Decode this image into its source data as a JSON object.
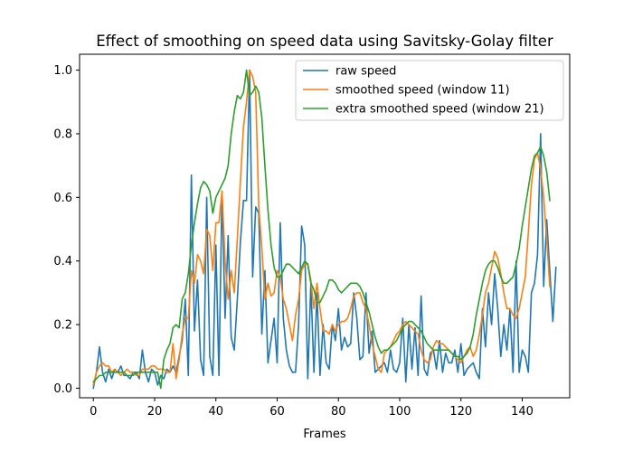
{
  "chart_data": {
    "type": "line",
    "title": "Effect of smoothing on speed data using Savitsky-Golay filter",
    "xlabel": "Frames",
    "ylabel": "",
    "xlim": [
      -4.5,
      155.5
    ],
    "ylim": [
      -0.03,
      1.05
    ],
    "xticks": [
      0,
      20,
      40,
      60,
      80,
      100,
      120,
      140
    ],
    "yticks": [
      0.0,
      0.2,
      0.4,
      0.6,
      0.8,
      1.0
    ],
    "xtick_labels": [
      "0",
      "20",
      "40",
      "60",
      "80",
      "100",
      "120",
      "140"
    ],
    "ytick_labels": [
      "0.0",
      "0.2",
      "0.4",
      "0.6",
      "0.8",
      "1.0"
    ],
    "legend_position": "top-right",
    "grid": false,
    "series": [
      {
        "name": "raw speed",
        "color": "#1f77b4",
        "values": [
          0.0,
          0.05,
          0.13,
          0.05,
          0.02,
          0.06,
          0.03,
          0.06,
          0.05,
          0.07,
          0.04,
          0.04,
          0.03,
          0.05,
          0.05,
          0.03,
          0.12,
          0.05,
          0.02,
          0.06,
          0.05,
          0.01,
          0.04,
          0.03,
          0.06,
          0.05,
          0.07,
          0.05,
          0.1,
          0.15,
          0.28,
          0.04,
          0.67,
          0.18,
          0.34,
          0.09,
          0.04,
          0.6,
          0.1,
          0.04,
          0.45,
          0.04,
          0.62,
          0.22,
          0.48,
          0.16,
          0.12,
          0.28,
          0.46,
          0.59,
          0.59,
          1.0,
          0.35,
          0.57,
          0.55,
          0.17,
          0.37,
          0.08,
          0.15,
          0.22,
          0.08,
          0.52,
          0.22,
          0.12,
          0.07,
          0.05,
          0.05,
          0.2,
          0.51,
          0.45,
          0.03,
          0.33,
          0.05,
          0.3,
          0.04,
          0.2,
          0.08,
          0.06,
          0.2,
          0.15,
          0.25,
          0.12,
          0.16,
          0.13,
          0.14,
          0.3,
          0.22,
          0.09,
          0.1,
          0.3,
          0.11,
          0.18,
          0.05,
          0.06,
          0.07,
          0.08,
          0.05,
          0.12,
          0.06,
          0.05,
          0.08,
          0.22,
          0.02,
          0.2,
          0.06,
          0.19,
          0.04,
          0.29,
          0.06,
          0.04,
          0.11,
          0.12,
          0.06,
          0.15,
          0.05,
          0.11,
          0.08,
          0.08,
          0.12,
          0.05,
          0.14,
          0.04,
          0.06,
          0.07,
          0.08,
          0.05,
          0.03,
          0.25,
          0.13,
          0.3,
          0.2,
          0.36,
          0.25,
          0.1,
          0.2,
          0.12,
          0.25,
          0.05,
          0.4,
          0.05,
          0.12,
          0.1,
          0.05,
          0.3,
          0.33,
          0.42,
          0.8,
          0.32,
          0.53,
          0.37,
          0.21,
          0.38
        ]
      },
      {
        "name": "smoothed speed (window 11)",
        "color": "#ff7f0e",
        "values": [
          0.01,
          0.05,
          0.07,
          0.08,
          0.07,
          0.07,
          0.05,
          0.06,
          0.05,
          0.04,
          0.05,
          0.06,
          0.05,
          0.05,
          0.04,
          0.04,
          0.06,
          0.06,
          0.06,
          0.07,
          0.07,
          0.06,
          0.06,
          0.06,
          0.05,
          0.05,
          0.14,
          0.03,
          0.09,
          0.17,
          0.22,
          0.22,
          0.37,
          0.33,
          0.42,
          0.4,
          0.36,
          0.5,
          0.48,
          0.37,
          0.52,
          0.52,
          0.62,
          0.4,
          0.28,
          0.37,
          0.3,
          0.47,
          0.65,
          0.82,
          0.9,
          1.0,
          0.98,
          0.93,
          0.57,
          0.44,
          0.28,
          0.33,
          0.29,
          0.3,
          0.37,
          0.35,
          0.28,
          0.25,
          0.2,
          0.15,
          0.23,
          0.28,
          0.37,
          0.39,
          0.39,
          0.34,
          0.25,
          0.33,
          0.25,
          0.18,
          0.18,
          0.17,
          0.2,
          0.18,
          0.2,
          0.21,
          0.21,
          0.22,
          0.25,
          0.29,
          0.3,
          0.3,
          0.27,
          0.25,
          0.2,
          0.14,
          0.1,
          0.06,
          0.05,
          0.11,
          0.12,
          0.13,
          0.15,
          0.17,
          0.18,
          0.2,
          0.21,
          0.2,
          0.19,
          0.18,
          0.17,
          0.12,
          0.09,
          0.08,
          0.09,
          0.13,
          0.15,
          0.14,
          0.14,
          0.13,
          0.12,
          0.11,
          0.1,
          0.09,
          0.08,
          0.1,
          0.12,
          0.13,
          0.1,
          0.12,
          0.17,
          0.23,
          0.3,
          0.33,
          0.38,
          0.43,
          0.41,
          0.36,
          0.3,
          0.25,
          0.25,
          0.23,
          0.22,
          0.25,
          0.3,
          0.35,
          0.49,
          0.64,
          0.72,
          0.74,
          0.69,
          0.6,
          0.47,
          0.32
        ]
      },
      {
        "name": "extra smoothed speed (window 21)",
        "color": "#2ca02c",
        "values": [
          0.02,
          0.03,
          0.04,
          0.04,
          0.05,
          0.05,
          0.05,
          0.05,
          0.05,
          0.05,
          0.05,
          0.04,
          0.04,
          0.04,
          0.05,
          0.05,
          0.05,
          0.05,
          0.05,
          0.05,
          0.05,
          0.05,
          0.0,
          0.09,
          0.12,
          0.14,
          0.19,
          0.2,
          0.19,
          0.28,
          0.3,
          0.36,
          0.45,
          0.52,
          0.58,
          0.63,
          0.65,
          0.64,
          0.62,
          0.55,
          0.6,
          0.62,
          0.64,
          0.66,
          0.7,
          0.8,
          0.87,
          0.92,
          0.91,
          0.93,
          1.0,
          0.92,
          0.93,
          0.95,
          0.93,
          0.85,
          0.7,
          0.56,
          0.45,
          0.38,
          0.35,
          0.35,
          0.37,
          0.39,
          0.39,
          0.38,
          0.37,
          0.36,
          0.38,
          0.4,
          0.39,
          0.33,
          0.31,
          0.27,
          0.27,
          0.29,
          0.31,
          0.34,
          0.34,
          0.33,
          0.31,
          0.3,
          0.31,
          0.32,
          0.33,
          0.33,
          0.33,
          0.32,
          0.3,
          0.27,
          0.24,
          0.2,
          0.16,
          0.13,
          0.11,
          0.12,
          0.12,
          0.13,
          0.14,
          0.15,
          0.17,
          0.19,
          0.2,
          0.21,
          0.21,
          0.2,
          0.19,
          0.18,
          0.16,
          0.14,
          0.13,
          0.12,
          0.12,
          0.12,
          0.12,
          0.12,
          0.12,
          0.11,
          0.1,
          0.1,
          0.09,
          0.1,
          0.11,
          0.13,
          0.17,
          0.23,
          0.28,
          0.33,
          0.37,
          0.39,
          0.4,
          0.4,
          0.38,
          0.35,
          0.33,
          0.33,
          0.34,
          0.35,
          0.39,
          0.44,
          0.51,
          0.57,
          0.63,
          0.69,
          0.73,
          0.74,
          0.76,
          0.73,
          0.68,
          0.59
        ]
      }
    ]
  }
}
